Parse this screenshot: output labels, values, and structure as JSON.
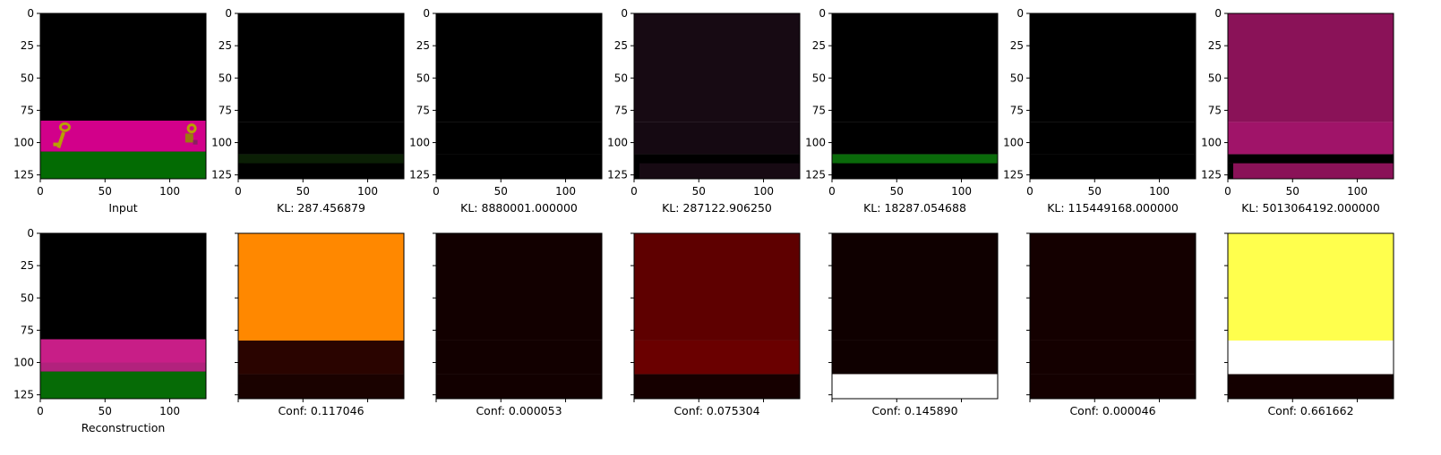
{
  "chart_data": {
    "type": "image-grid",
    "axis": {
      "xlim": [
        0,
        128
      ],
      "ylim": [
        128,
        0
      ],
      "xticks": [
        0,
        50,
        100
      ],
      "yticks": [
        0,
        25,
        50,
        75,
        100,
        125
      ]
    },
    "top_row": [
      {
        "kind": "input",
        "caption": "Input"
      },
      {
        "kind": "latent",
        "caption": "KL: 287.456879",
        "region_colors": [
          "#000000",
          "#000000",
          "#0b1f05"
        ]
      },
      {
        "kind": "latent",
        "caption": "KL: 8880001.000000",
        "region_colors": [
          "#000000",
          "#000000",
          "#000000"
        ]
      },
      {
        "kind": "latent",
        "caption": "KL: 287122.906250",
        "region_colors": [
          "#170a13",
          "#150912",
          "#000000"
        ]
      },
      {
        "kind": "latent",
        "caption": "KL: 18287.054688",
        "region_colors": [
          "#000000",
          "#000000",
          "#0a6a0a"
        ]
      },
      {
        "kind": "latent",
        "caption": "KL: 115449168.000000",
        "region_colors": [
          "#000000",
          "#000000",
          "#000000"
        ]
      },
      {
        "kind": "latent",
        "caption": "KL: 5013064192.000000",
        "region_colors": [
          "#8a1258",
          "#a01469",
          "#000000"
        ]
      }
    ],
    "bottom_row": [
      {
        "kind": "reconstruction",
        "caption": "Reconstruction"
      },
      {
        "kind": "confidence",
        "caption": "Conf: 0.117046",
        "region_colors": [
          "#ff8800",
          "#2a0400",
          "#1a0200"
        ]
      },
      {
        "kind": "confidence",
        "caption": "Conf: 0.000053",
        "region_colors": [
          "#120000",
          "#120000",
          "#120000"
        ]
      },
      {
        "kind": "confidence",
        "caption": "Conf: 0.075304",
        "region_colors": [
          "#5e0000",
          "#6a0000",
          "#160000"
        ]
      },
      {
        "kind": "confidence",
        "caption": "Conf: 0.145890",
        "region_colors": [
          "#0f0000",
          "#0f0000",
          "#ffffff"
        ]
      },
      {
        "kind": "confidence",
        "caption": "Conf: 0.000046",
        "region_colors": [
          "#140000",
          "#140000",
          "#140000"
        ]
      },
      {
        "kind": "confidence",
        "caption": "Conf: 0.661662",
        "region_colors": [
          "#ffff4d",
          "#ffffff",
          "#140000"
        ]
      }
    ]
  }
}
